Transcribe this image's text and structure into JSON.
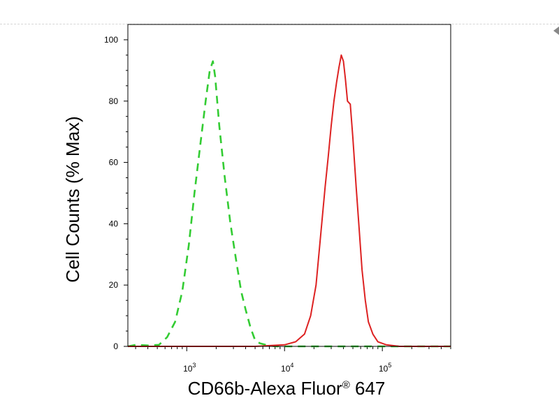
{
  "chart_data": {
    "type": "line",
    "title": "",
    "xlabel": "CD66b-Alexa Fluor® 647",
    "ylabel": "Cell Counts (% Max)",
    "x_scale": "log",
    "xlim": [
      250,
      500000
    ],
    "ylim": [
      0,
      105
    ],
    "grid": false,
    "legend": "none",
    "y_ticks": [
      0,
      20,
      40,
      60,
      80,
      100
    ],
    "x_ticks": [
      {
        "base": "10",
        "exp": "3",
        "value": 1000
      },
      {
        "base": "10",
        "exp": "4",
        "value": 10000
      },
      {
        "base": "10",
        "exp": "5",
        "value": 100000
      }
    ],
    "series": [
      {
        "color": "#33cc33",
        "style": "dashed",
        "x": [
          250,
          300,
          400,
          520,
          630,
          760,
          900,
          1050,
          1200,
          1380,
          1560,
          1720,
          1850,
          1950,
          2150,
          2450,
          2800,
          3200,
          3600,
          4000,
          4500,
          5000,
          5600,
          6400,
          8000,
          12000,
          30000,
          100000,
          500000
        ],
        "y": [
          0,
          0.5,
          0.3,
          0.5,
          3,
          8,
          18,
          33,
          50,
          66,
          80,
          90,
          93,
          88,
          72,
          55,
          40,
          28,
          18,
          12,
          6,
          2,
          1,
          0.5,
          0,
          0,
          0,
          0,
          0
        ]
      },
      {
        "color": "#dd2222",
        "style": "solid",
        "x": [
          250,
          1000,
          5000,
          10000,
          13000,
          16000,
          18500,
          21000,
          23500,
          26000,
          28000,
          30000,
          32000,
          34000,
          36000,
          38000,
          40000,
          42000,
          44000,
          47000,
          50000,
          54000,
          58000,
          62000,
          67000,
          72000,
          80000,
          90000,
          110000,
          150000,
          500000
        ],
        "y": [
          0,
          0,
          0,
          0.5,
          1.5,
          4,
          10,
          20,
          37,
          52,
          62,
          72,
          80,
          86,
          91,
          95,
          93,
          87,
          80,
          79,
          68,
          52,
          38,
          25,
          15,
          8,
          4,
          1.5,
          0.5,
          0,
          0
        ]
      }
    ]
  }
}
